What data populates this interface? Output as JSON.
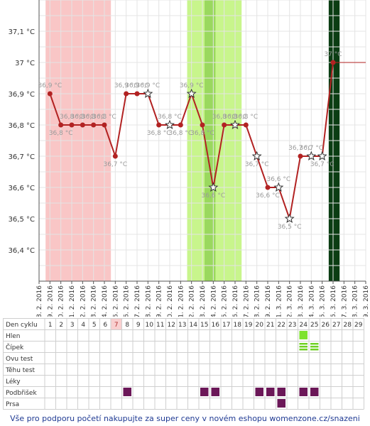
{
  "chart_data": {
    "type": "line",
    "ylabel_unit": "°C",
    "ylim": [
      36.3,
      37.2
    ],
    "y_ticks": [
      "36,4 °C",
      "36,5 °C",
      "36,6 °C",
      "36,7 °C",
      "36,8 °C",
      "36,9 °C",
      "37 °C",
      "37,1 °C"
    ],
    "y_tick_values": [
      36.4,
      36.5,
      36.6,
      36.7,
      36.8,
      36.9,
      37.0,
      37.1
    ],
    "dates": [
      "8. 2. 2016",
      "9. 2. 2016",
      "10. 2. 2016",
      "11. 2. 2016",
      "12. 2. 2016",
      "13. 2. 2016",
      "14. 2. 2016",
      "15. 2. 2016",
      "16. 2. 2016",
      "17. 2. 2016",
      "18. 2. 2016",
      "19. 2. 2016",
      "20. 2. 2016",
      "21. 2. 2016",
      "22. 2. 2016",
      "23. 2. 2016",
      "24. 2. 2016",
      "25. 2. 2016",
      "26. 2. 2016",
      "27. 2. 2016",
      "28. 2. 2016",
      "29. 2. 2016",
      "1. 3. 2016",
      "2. 3. 2016",
      "3. 3. 2016",
      "4. 3. 2016",
      "5. 3. 2016",
      "6. 3. 2016",
      "7. 3. 2016",
      "8. 3. 2016",
      "9. 3. 2016"
    ],
    "series": [
      {
        "color": "#b22222",
        "points": [
          {
            "day": 1,
            "y": 36.9,
            "label": "36,9 °C",
            "marker": "dot"
          },
          {
            "day": 2,
            "y": 36.8,
            "label": "36,8 °C",
            "marker": "dot"
          },
          {
            "day": 3,
            "y": 36.8,
            "label": "36,8 °C",
            "marker": "dot"
          },
          {
            "day": 4,
            "y": 36.8,
            "label": "36,8 °C",
            "marker": "dot"
          },
          {
            "day": 5,
            "y": 36.8,
            "label": "36,8 °C",
            "marker": "dot"
          },
          {
            "day": 6,
            "y": 36.8,
            "label": "36,8 °C",
            "marker": "dot"
          },
          {
            "day": 7,
            "y": 36.7,
            "label": "36,7 °C",
            "marker": "dot"
          },
          {
            "day": 8,
            "y": 36.9,
            "label": "36,9 °C",
            "marker": "dot"
          },
          {
            "day": 9,
            "y": 36.9,
            "label": "36,9 °C",
            "marker": "dot"
          },
          {
            "day": 10,
            "y": 36.9,
            "label": "36,9 °C",
            "marker": "star"
          },
          {
            "day": 11,
            "y": 36.8,
            "label": "36,8 °C",
            "marker": "dot"
          },
          {
            "day": 12,
            "y": 36.8,
            "label": "36,8 °C",
            "marker": "star"
          },
          {
            "day": 13,
            "y": 36.8,
            "label": "36,8 °C",
            "marker": "dot"
          },
          {
            "day": 14,
            "y": 36.9,
            "label": "36,9 °C",
            "marker": "star"
          },
          {
            "day": 15,
            "y": 36.8,
            "label": "36,8 °C",
            "marker": "dot"
          },
          {
            "day": 16,
            "y": 36.6,
            "label": "36,6 °C",
            "marker": "star"
          },
          {
            "day": 17,
            "y": 36.8,
            "label": "36,8 °C",
            "marker": "dot"
          },
          {
            "day": 18,
            "y": 36.8,
            "label": "36,8 °C",
            "marker": "star"
          },
          {
            "day": 19,
            "y": 36.8,
            "label": "36,8 °C",
            "marker": "dot"
          },
          {
            "day": 20,
            "y": 36.7,
            "label": "36,7 °C",
            "marker": "star"
          },
          {
            "day": 21,
            "y": 36.6,
            "label": "36,6 °C",
            "marker": "dot"
          },
          {
            "day": 22,
            "y": 36.6,
            "label": "36,6 °C",
            "marker": "star"
          },
          {
            "day": 23,
            "y": 36.5,
            "label": "36,5 °C",
            "marker": "star"
          },
          {
            "day": 24,
            "y": 36.7,
            "label": "36,7 °C",
            "marker": "dot"
          },
          {
            "day": 25,
            "y": 36.7,
            "label": "36,7 °C",
            "marker": "star"
          },
          {
            "day": 26,
            "y": 36.7,
            "label": "36,7 °C",
            "marker": "star"
          },
          {
            "day": 27,
            "y": 37.0,
            "label": "37 °C",
            "marker": "dot"
          }
        ]
      }
    ],
    "reference_line": {
      "y": 37.0,
      "from_day": 27,
      "to_day": 30,
      "color": "#b22222"
    },
    "bands": [
      {
        "from": 0.6,
        "to": 6.6,
        "color": "#f9c6c6"
      },
      {
        "from": 13.6,
        "to": 18.6,
        "color": "#c8f58c"
      },
      {
        "from": 15.2,
        "to": 16.2,
        "color": "#9ad85e"
      },
      {
        "from": 26.6,
        "to": 27.6,
        "color": "#0b3d13"
      }
    ],
    "grid": true
  },
  "table": {
    "header_label": "Den cyklu",
    "days": [
      "1",
      "2",
      "3",
      "4",
      "5",
      "6",
      "7",
      "8",
      "9",
      "10",
      "11",
      "12",
      "13",
      "14",
      "15",
      "16",
      "17",
      "18",
      "19",
      "20",
      "21",
      "22",
      "23",
      "24",
      "25",
      "26",
      "27",
      "28",
      "29"
    ],
    "highlight_day": "7",
    "rows": [
      {
        "label": "Hlen",
        "marks": [
          {
            "day": 24,
            "style": "green-solid"
          }
        ]
      },
      {
        "label": "Čípek",
        "marks": [
          {
            "day": 24,
            "style": "green-striped"
          },
          {
            "day": 25,
            "style": "green-striped"
          }
        ]
      },
      {
        "label": "Ovu test",
        "marks": []
      },
      {
        "label": "Těhu test",
        "marks": []
      },
      {
        "label": "Léky",
        "marks": []
      },
      {
        "label": "Podbřišek",
        "marks": [
          {
            "day": 8,
            "style": "purple"
          },
          {
            "day": 15,
            "style": "purple"
          },
          {
            "day": 16,
            "style": "purple"
          },
          {
            "day": 20,
            "style": "purple"
          },
          {
            "day": 21,
            "style": "purple"
          },
          {
            "day": 22,
            "style": "purple"
          },
          {
            "day": 24,
            "style": "purple"
          },
          {
            "day": 25,
            "style": "purple"
          }
        ]
      },
      {
        "label": "Prsa",
        "marks": [
          {
            "day": 22,
            "style": "purple"
          }
        ]
      }
    ]
  },
  "footer": {
    "text": "Vše pro podporu početí nakupujte za super ceny v novém eshopu womenzone.cz/snazeni"
  }
}
